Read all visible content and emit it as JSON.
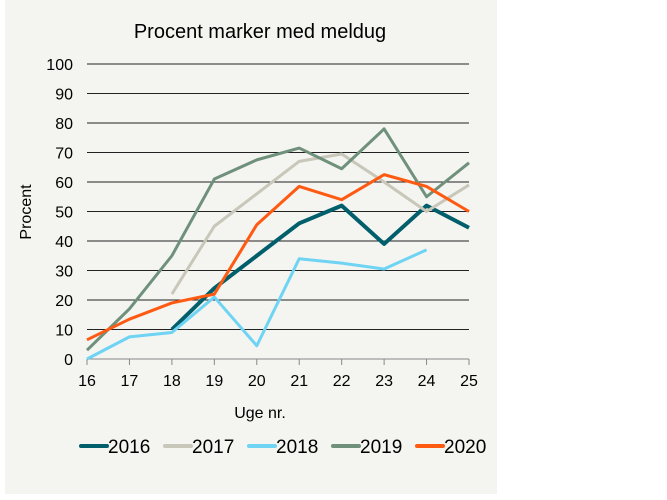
{
  "chart_data": {
    "type": "line",
    "title": "Procent marker med meldug",
    "xlabel": "Uge nr.",
    "ylabel": "Procent",
    "x": [
      16,
      17,
      18,
      19,
      20,
      21,
      22,
      23,
      24,
      25
    ],
    "xlim": [
      16,
      25
    ],
    "ylim": [
      0,
      100
    ],
    "yticks": [
      0,
      10,
      20,
      30,
      40,
      50,
      60,
      70,
      80,
      90,
      100
    ],
    "grid": "horizontal",
    "legend": "bottom",
    "series": [
      {
        "name": "2016",
        "color": "#005f6b",
        "values": [
          null,
          null,
          10,
          24,
          35,
          46,
          52,
          39,
          52,
          44.5
        ]
      },
      {
        "name": "2017",
        "color": "#c9c7b9",
        "values": [
          null,
          null,
          22,
          45,
          56,
          67,
          69.5,
          60,
          50,
          59
        ]
      },
      {
        "name": "2018",
        "color": "#6fd4f4",
        "values": [
          0,
          7.5,
          9,
          21,
          4.5,
          34,
          32.5,
          30.5,
          37,
          null
        ]
      },
      {
        "name": "2019",
        "color": "#6f917b",
        "values": [
          3,
          17,
          35,
          61,
          67.5,
          71.5,
          64.5,
          78,
          55,
          66.5
        ]
      },
      {
        "name": "2020",
        "color": "#ff5a12",
        "values": [
          6.5,
          13.5,
          19,
          22,
          45.5,
          58.5,
          54,
          62.5,
          58.5,
          50
        ]
      }
    ]
  }
}
